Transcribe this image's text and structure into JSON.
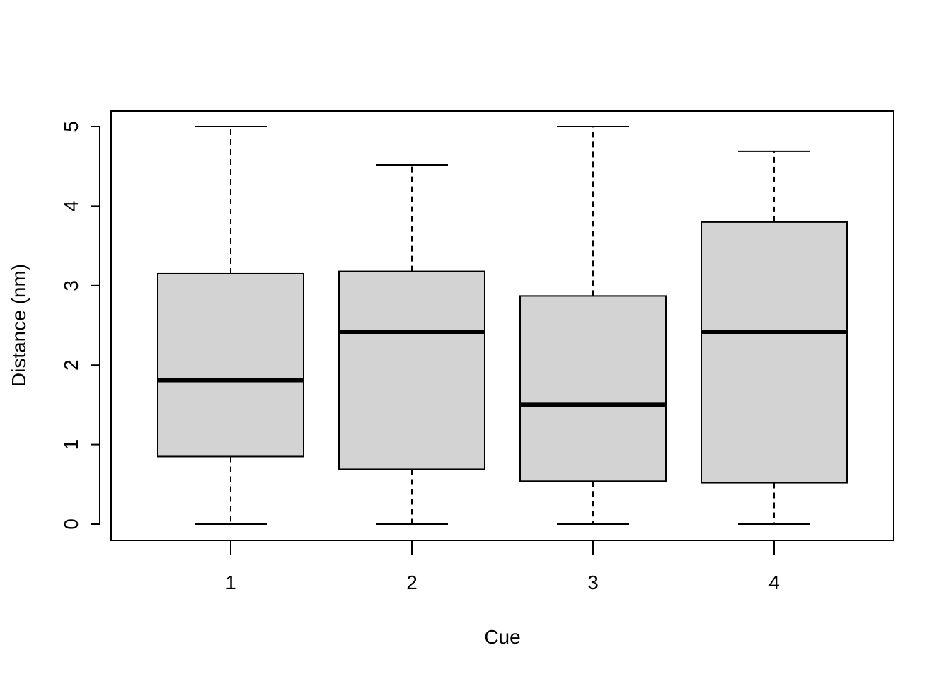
{
  "chart_data": {
    "type": "boxplot",
    "xlabel": "Cue",
    "ylabel": "Distance (nm)",
    "categories": [
      "1",
      "2",
      "3",
      "4"
    ],
    "y_ticks": [
      "0",
      "1",
      "2",
      "3",
      "4",
      "5"
    ],
    "ylim": [
      -0.2,
      5.2
    ],
    "grid": false,
    "box_fill": "#d3d3d3",
    "stroke": "#000000",
    "boxes": [
      {
        "category": "1",
        "min": 0,
        "q1": 0.85,
        "median": 1.81,
        "q3": 3.15,
        "max": 5.0
      },
      {
        "category": "2",
        "min": 0,
        "q1": 0.69,
        "median": 2.42,
        "q3": 3.18,
        "max": 4.52
      },
      {
        "category": "3",
        "min": 0,
        "q1": 0.54,
        "median": 1.5,
        "q3": 2.87,
        "max": 5.0
      },
      {
        "category": "4",
        "min": 0,
        "q1": 0.52,
        "median": 2.42,
        "q3": 3.8,
        "max": 4.69
      }
    ]
  }
}
